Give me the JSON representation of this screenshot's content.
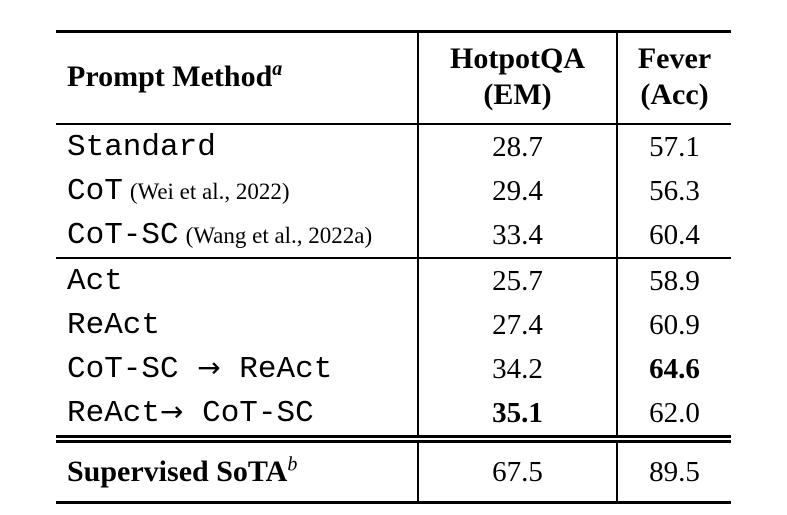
{
  "table": {
    "header": {
      "method_label": "Prompt Method",
      "method_sup": "a",
      "col2_line1": "HotpotQA",
      "col2_line2": "(EM)",
      "col3_line1": "Fever",
      "col3_line2": "(Acc)"
    },
    "groups": [
      {
        "rows": [
          {
            "method": "Standard",
            "hotpotqa": "28.7",
            "fever": "57.1"
          },
          {
            "method": "CoT",
            "citation": "(Wei et al., 2022)",
            "hotpotqa": "29.4",
            "fever": "56.3"
          },
          {
            "method": "CoT-SC",
            "citation": "(Wang et al., 2022a)",
            "hotpotqa": "33.4",
            "fever": "60.4"
          }
        ]
      },
      {
        "rows": [
          {
            "method": "Act",
            "hotpotqa": "25.7",
            "fever": "58.9"
          },
          {
            "method": "ReAct",
            "hotpotqa": "27.4",
            "fever": "60.9"
          },
          {
            "method": "CoT-SC → ReAct",
            "hotpotqa": "34.2",
            "fever": "64.6",
            "fever_bold": true
          },
          {
            "method": "ReAct→ CoT-SC",
            "hotpotqa": "35.1",
            "hotpotqa_bold": true,
            "fever": "62.0"
          }
        ]
      },
      {
        "style": "sota",
        "double_rule_above": true,
        "rows": [
          {
            "method": "Supervised SoTA",
            "method_sup": "b",
            "serif_bold": true,
            "hotpotqa": "67.5",
            "fever": "89.5"
          }
        ]
      }
    ],
    "colors": {
      "text": "#000000",
      "rule": "#000000",
      "background": "#ffffff"
    }
  }
}
